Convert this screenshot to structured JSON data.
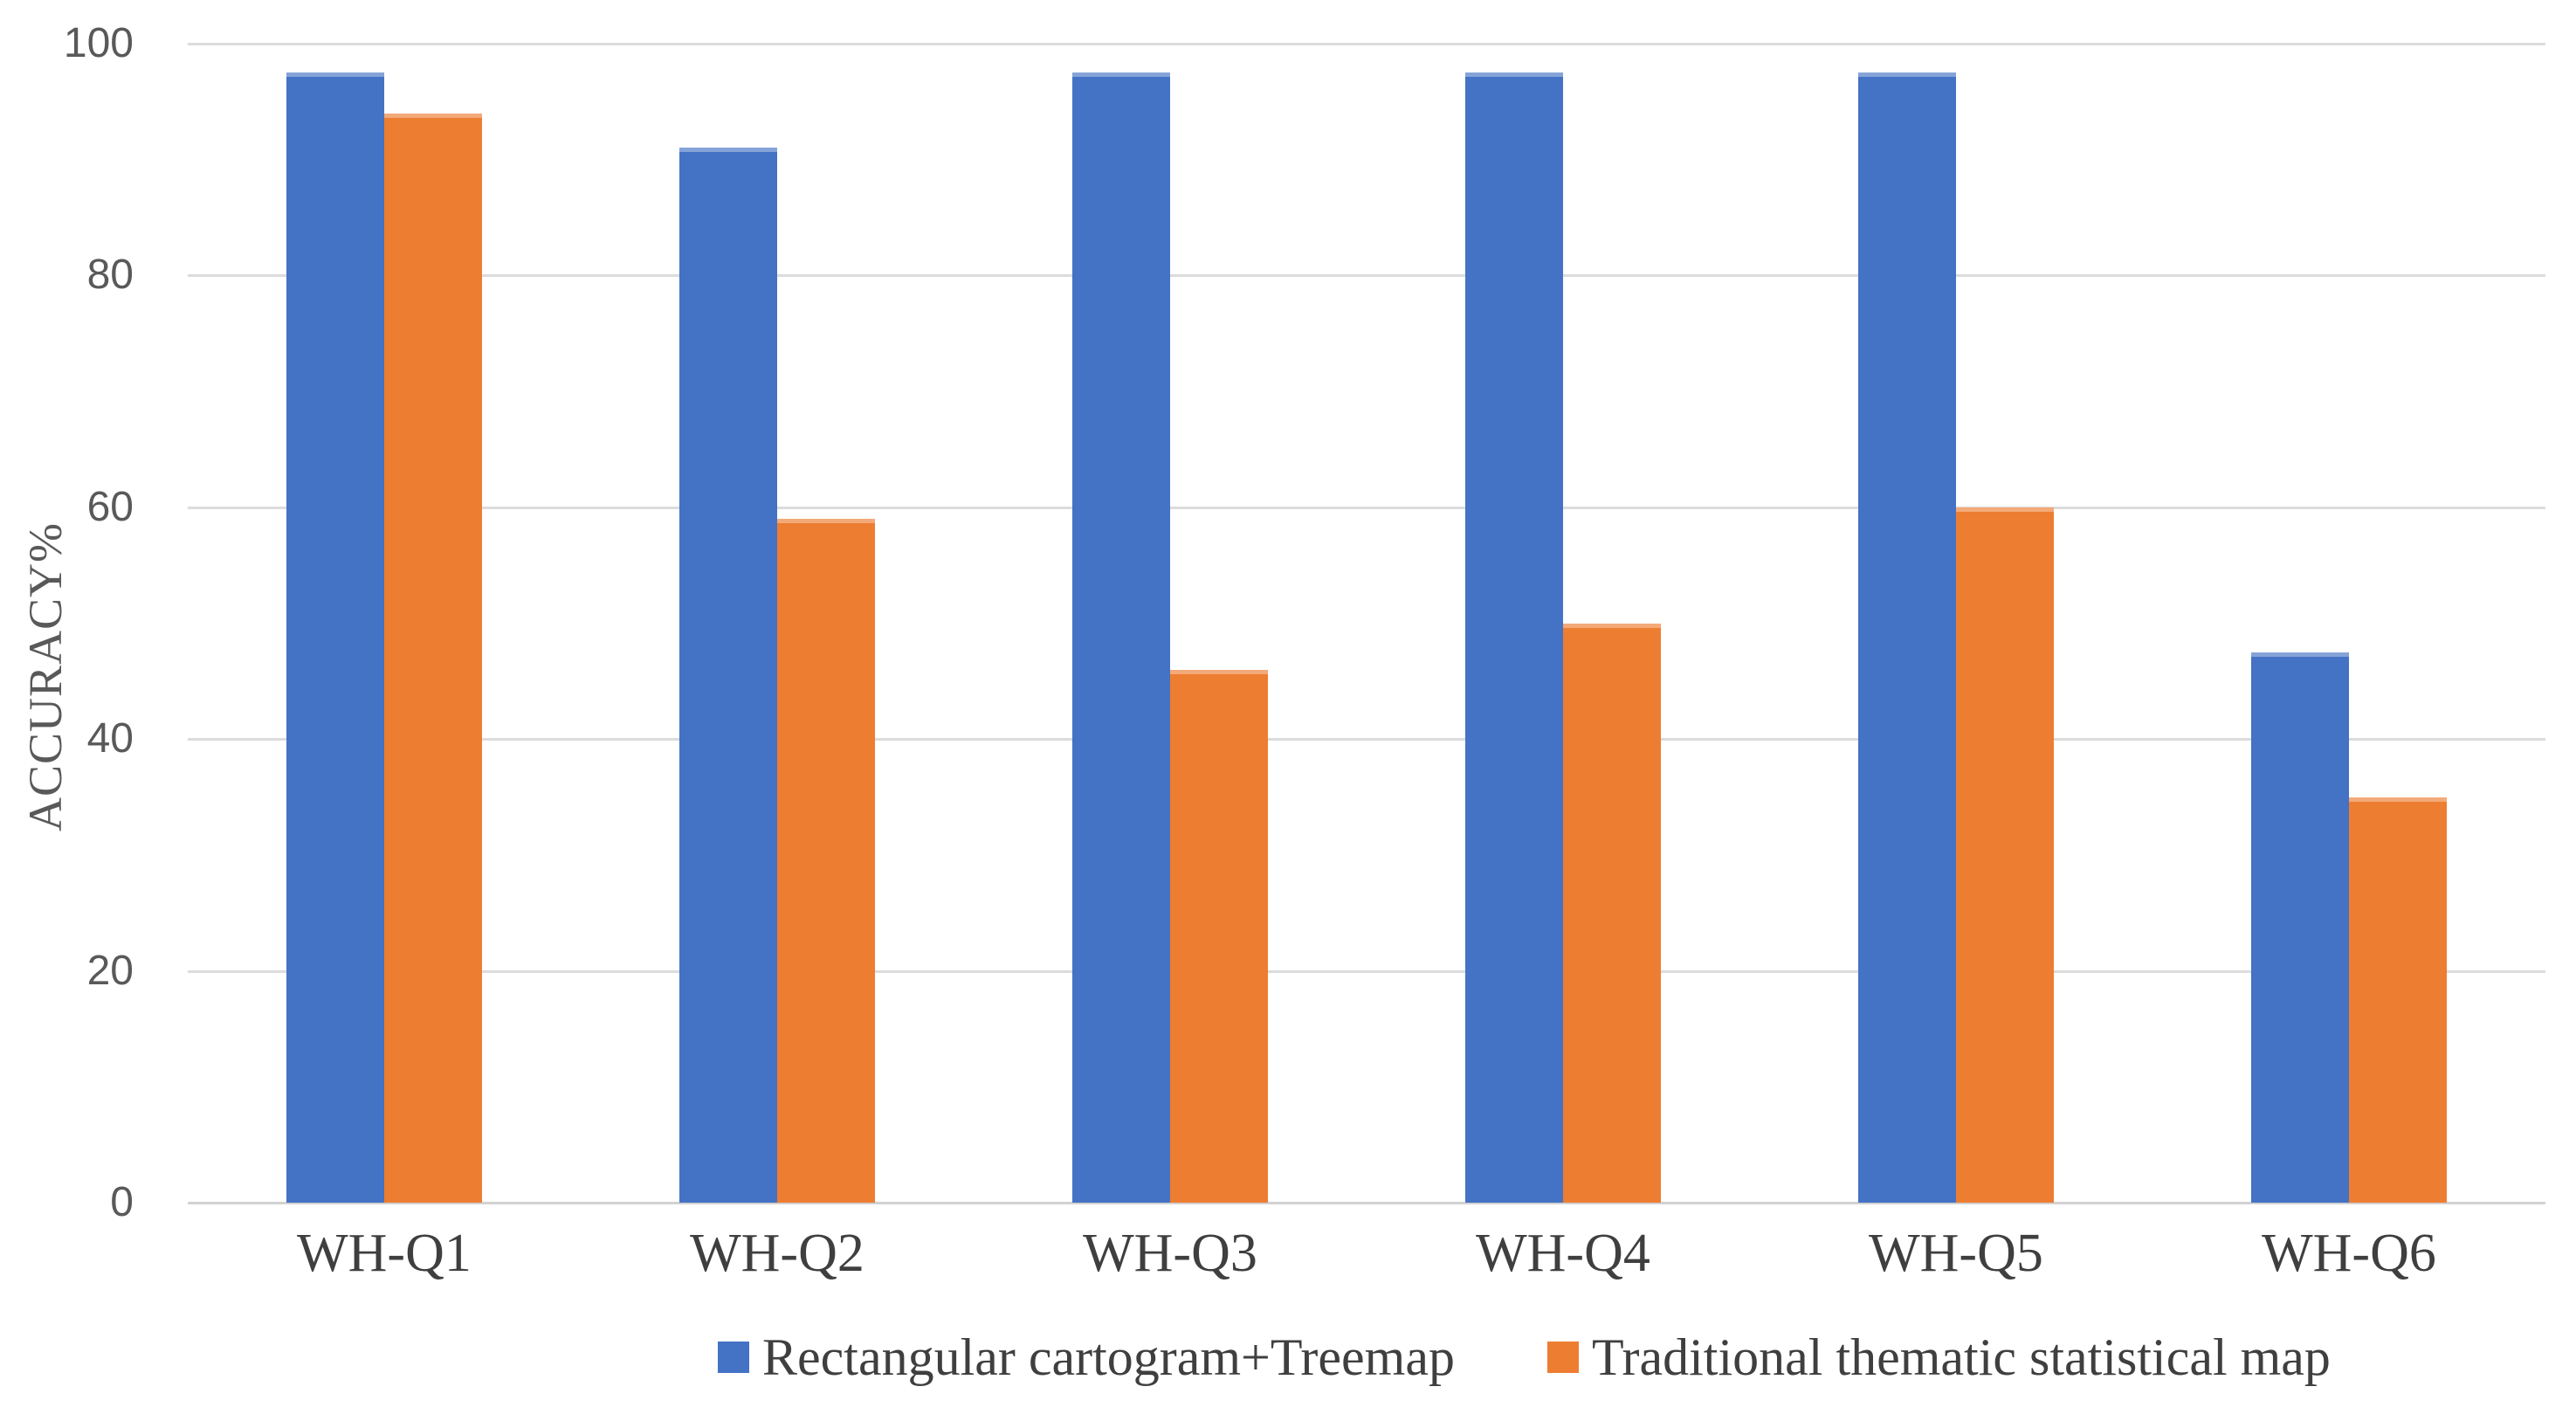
{
  "chart_data": {
    "type": "bar",
    "title": "",
    "categories": [
      "WH-Q1",
      "WH-Q2",
      "WH-Q3",
      "WH-Q4",
      "WH-Q5",
      "WH-Q6"
    ],
    "series": [
      {
        "name": "Rectangular cartogram+Treemap",
        "color": "#4472C4",
        "values": [
          97.5,
          91,
          97.5,
          97.5,
          97.5,
          47.5
        ]
      },
      {
        "name": "Traditional thematic statistical map",
        "color": "#ED7D31",
        "values": [
          94,
          59,
          46,
          50,
          60,
          35
        ]
      }
    ],
    "xlabel": "",
    "ylabel": "ACCURACY%",
    "ylim": [
      0,
      100
    ],
    "yticks": [
      0,
      20,
      40,
      60,
      80,
      100
    ],
    "grid": "horizontal",
    "legend_position": "bottom",
    "gridline_color": "#DCDCDC",
    "text_color": "#595959"
  }
}
